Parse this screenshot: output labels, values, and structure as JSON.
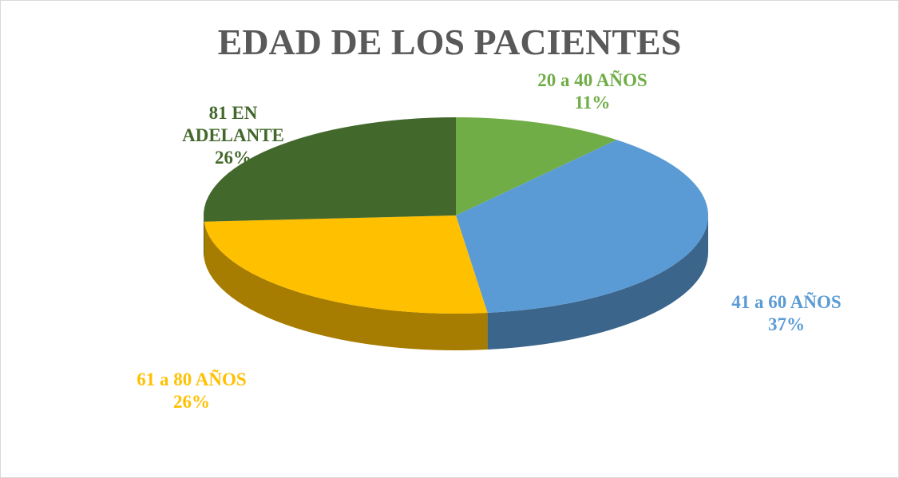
{
  "chart_data": {
    "type": "pie",
    "title": "EDAD DE LOS PACIENTES",
    "categories": [
      "20 a 40 AÑOS",
      "41 a 60 AÑOS",
      "61 a 80 AÑOS",
      "81 EN ADELANTE"
    ],
    "values": [
      11,
      37,
      26,
      26
    ],
    "value_labels": [
      "11%",
      "37%",
      "26%",
      "26%"
    ],
    "colors": [
      "#70ad47",
      "#5b9bd5",
      "#ffc000",
      "#43682b"
    ]
  }
}
